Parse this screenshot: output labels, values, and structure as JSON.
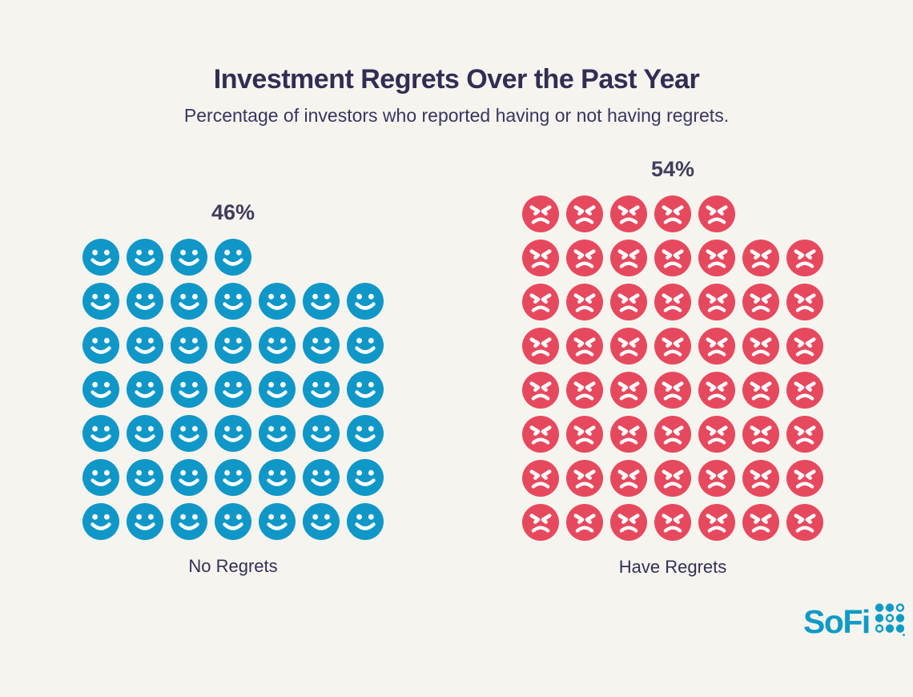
{
  "page": {
    "background": "#F6F4EF"
  },
  "header": {
    "title": "Investment Regrets Over the Past Year",
    "subtitle": "Percentage of investors who reported having or not having regrets."
  },
  "chart_data": {
    "type": "pictogram",
    "title": "Investment Regrets Over the Past Year",
    "subtitle": "Percentage of investors who reported having or not having regrets.",
    "categories": [
      "No Regrets",
      "Have Regrets"
    ],
    "values": [
      46,
      54
    ],
    "groups": [
      {
        "id": "no-regrets",
        "percent_label": "46%",
        "value": 46,
        "label": "No Regrets",
        "icon": "smiley-face-icon",
        "color": "#0F97C7",
        "columns": 7,
        "rows": [
          4,
          7,
          7,
          7,
          7,
          7,
          7
        ]
      },
      {
        "id": "have-regrets",
        "percent_label": "54%",
        "value": 54,
        "label": "Have Regrets",
        "icon": "angry-face-icon",
        "color": "#E6495D",
        "columns": 7,
        "rows": [
          5,
          7,
          7,
          7,
          7,
          7,
          7,
          7
        ]
      }
    ]
  },
  "footer": {
    "logo_text": "SoFi",
    "logo_color": "#0D9BC6",
    "logo_dots": [
      [
        "filled",
        "filled",
        "ring"
      ],
      [
        "filled",
        "ring",
        "filled"
      ],
      [
        "ring",
        "filled",
        "filled"
      ]
    ]
  },
  "colors": {
    "background": "#F6F4EF",
    "navy": "#322D53",
    "blue": "#0F97C7",
    "red": "#E6495D"
  }
}
